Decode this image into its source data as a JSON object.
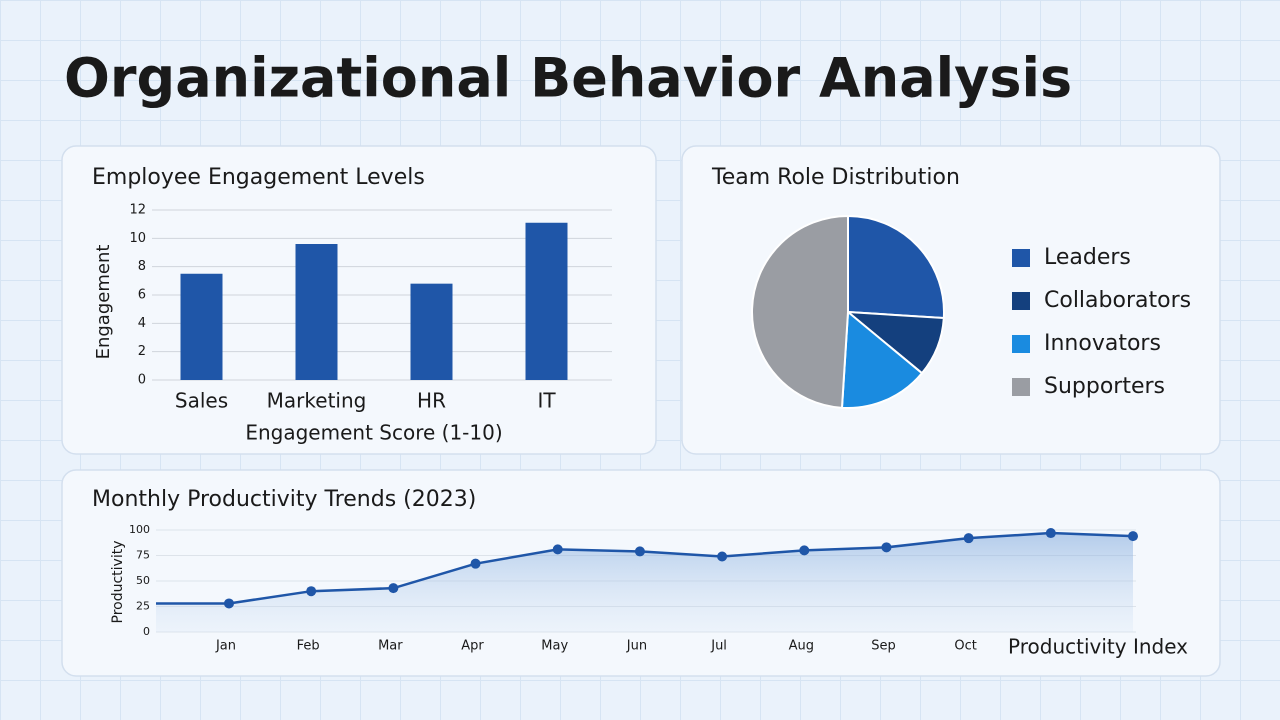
{
  "title": "Organizational Behavior Analysis",
  "chart_data": [
    {
      "type": "bar",
      "title": "Employee Engagement Levels",
      "x_label": "Engagement Score (1-10)",
      "y_label": "Engagement",
      "categories": [
        "Sales",
        "Marketing",
        "HR",
        "IT"
      ],
      "values": [
        7.5,
        9.6,
        6.8,
        11.1
      ],
      "color": "#1f56a8",
      "ylim": [
        0,
        12
      ],
      "yticks": [
        0,
        2,
        4,
        6,
        8,
        10,
        12
      ],
      "grid": true
    },
    {
      "type": "pie",
      "title": "Team Role Distribution",
      "categories": [
        "Leaders",
        "Collaborators",
        "Innovators",
        "Supporters"
      ],
      "values": [
        26,
        10,
        15,
        49
      ],
      "colors": [
        "#1f56a8",
        "#14407e",
        "#1a8be0",
        "#9a9da3"
      ],
      "legend": "right"
    },
    {
      "type": "line",
      "title": "Monthly Productivity Trends (2023)",
      "x_label": "Productivity Index",
      "y_label": "Productivity",
      "categories": [
        "Jan",
        "Feb",
        "Mar",
        "Apr",
        "May",
        "Jun",
        "Jul",
        "Aug",
        "Sep",
        "Oct",
        null,
        null
      ],
      "values": [
        28,
        40,
        43,
        67,
        81,
        79,
        74,
        80,
        83,
        92,
        97,
        94
      ],
      "color": "#1f56a8",
      "ylim": [
        0,
        100
      ],
      "yticks": [
        0,
        25,
        50,
        75,
        100
      ],
      "grid": true
    }
  ]
}
